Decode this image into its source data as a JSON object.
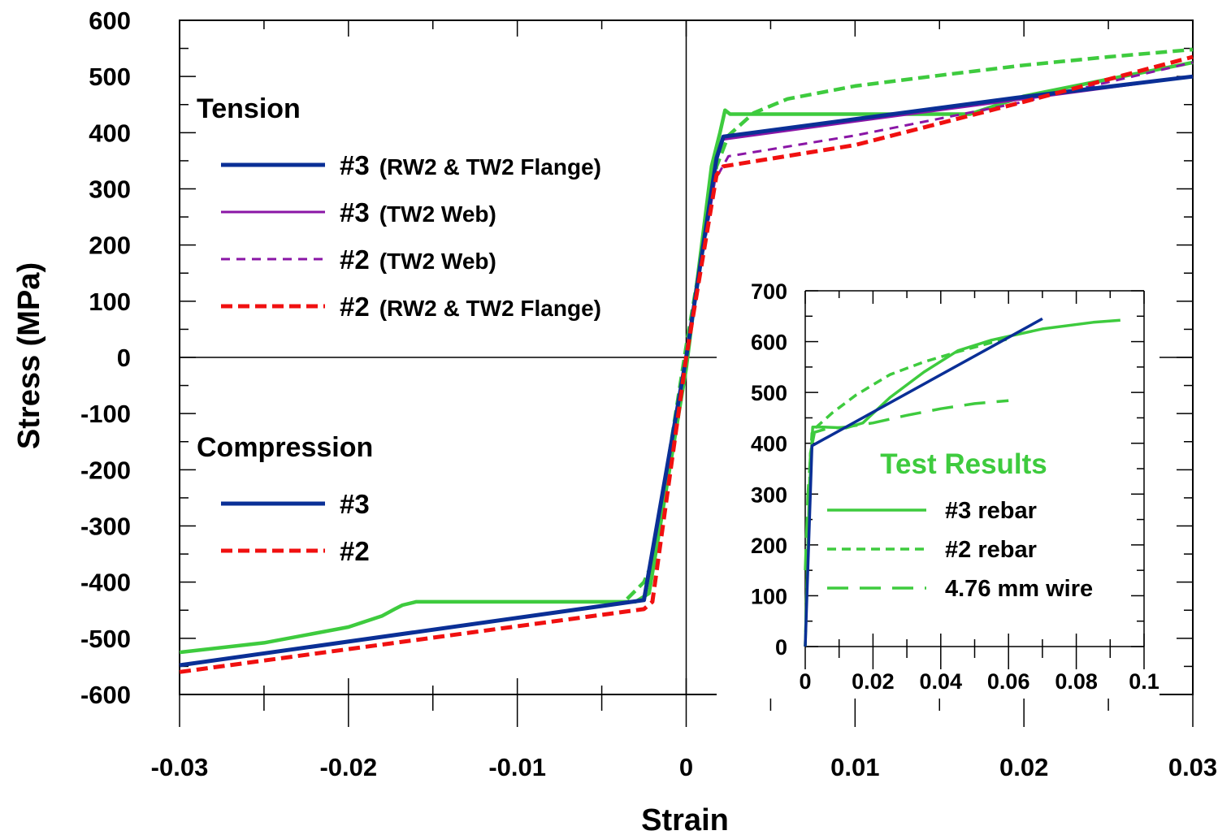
{
  "colors": {
    "blue": "#0a2f96",
    "purple": "#8a16a6",
    "red": "#f01010",
    "green": "#3ecb3e"
  },
  "chart_data": [
    {
      "type": "line",
      "xlabel": "Strain",
      "ylabel": "Stress (MPa)",
      "xlim": [
        -0.03,
        0.03
      ],
      "ylim": [
        -600,
        600
      ],
      "x_ticks": [
        "-0.03",
        "-0.02",
        "-0.01",
        "0",
        "0.01",
        "0.02",
        "0.03"
      ],
      "y_ticks": [
        "600",
        "500",
        "400",
        "300",
        "200",
        "100",
        "0",
        "-100",
        "-200",
        "-300",
        "-400",
        "-500",
        "-600"
      ],
      "legend_groups": [
        {
          "heading": "Tension",
          "entries": [
            {
              "main": "#3",
              "sub": "(RW2 & TW2 Flange)",
              "color": "#0a2f96",
              "style": "solid-thick"
            },
            {
              "main": "#3",
              "sub": "(TW2 Web)",
              "color": "#8a16a6",
              "style": "solid-thin"
            },
            {
              "main": "#2",
              "sub": "(TW2 Web)",
              "color": "#8a16a6",
              "style": "dash-thin"
            },
            {
              "main": "#2",
              "sub": "(RW2 & TW2 Flange)",
              "color": "#f01010",
              "style": "dash-thick"
            }
          ]
        },
        {
          "heading": "Compression",
          "entries": [
            {
              "main": "#3",
              "sub": "",
              "color": "#0a2f96",
              "style": "solid-thick"
            },
            {
              "main": "#2",
              "sub": "",
              "color": "#f01010",
              "style": "dash-thick"
            }
          ]
        }
      ],
      "series": [
        {
          "color": "#3ecb3e",
          "style": "solid",
          "points": [
            [
              -0.03,
              -525
            ],
            [
              -0.025,
              -508
            ],
            [
              -0.02,
              -480
            ],
            [
              -0.018,
              -460
            ],
            [
              -0.0172,
              -447
            ],
            [
              -0.0168,
              -441
            ],
            [
              -0.016,
              -435
            ],
            [
              -0.01,
              -435
            ],
            [
              -0.003,
              -435
            ],
            [
              -0.0022,
              -420
            ],
            [
              0,
              -20
            ],
            [
              0.0015,
              340
            ],
            [
              0.002,
              400
            ],
            [
              0.0023,
              440
            ],
            [
              0.0026,
              433
            ],
            [
              0.005,
              433
            ],
            [
              0.01,
              433
            ],
            [
              0.0168,
              433
            ],
            [
              0.02,
              465
            ],
            [
              0.025,
              495
            ],
            [
              0.03,
              525
            ]
          ]
        },
        {
          "color": "#3ecb3e",
          "style": "dash",
          "points": [
            [
              -0.0035,
              -430
            ],
            [
              -0.0025,
              -400
            ],
            [
              -0.002,
              -365
            ],
            [
              0,
              20
            ],
            [
              0.0018,
              340
            ],
            [
              0.0025,
              395
            ],
            [
              0.004,
              435
            ],
            [
              0.006,
              460
            ],
            [
              0.01,
              483
            ],
            [
              0.015,
              502
            ],
            [
              0.02,
              520
            ],
            [
              0.025,
              535
            ],
            [
              0.03,
              548
            ]
          ]
        },
        {
          "color": "#8a16a6",
          "style": "solid-thin",
          "points": [
            [
              0,
              0
            ],
            [
              0.0017,
              340
            ],
            [
              0.0022,
              388
            ],
            [
              0.01,
              420
            ],
            [
              0.02,
              460
            ],
            [
              0.03,
              500
            ]
          ]
        },
        {
          "color": "#8a16a6",
          "style": "dash-thin",
          "points": [
            [
              0,
              0
            ],
            [
              0.0017,
              315
            ],
            [
              0.0025,
              358
            ],
            [
              0.01,
              395
            ],
            [
              0.02,
              455
            ],
            [
              0.03,
              525
            ]
          ]
        },
        {
          "color": "#0a2f96",
          "style": "solid-thick",
          "points": [
            [
              -0.03,
              -548
            ],
            [
              -0.0025,
              -432
            ],
            [
              0,
              0
            ],
            [
              0.0018,
              355
            ],
            [
              0.0022,
              393
            ],
            [
              0.01,
              424
            ],
            [
              0.0195,
              462
            ],
            [
              0.03,
              500
            ]
          ]
        },
        {
          "color": "#f01010",
          "style": "dash-thick",
          "points": [
            [
              -0.03,
              -560
            ],
            [
              -0.0025,
              -448
            ],
            [
              -0.002,
              -435
            ],
            [
              0,
              0
            ],
            [
              0.0018,
              325
            ],
            [
              0.0022,
              340
            ],
            [
              0.01,
              378
            ],
            [
              0.02,
              455
            ],
            [
              0.03,
              535
            ]
          ]
        }
      ]
    },
    {
      "type": "line",
      "title": "Test Results",
      "xlim": [
        0,
        0.1
      ],
      "ylim": [
        0,
        700
      ],
      "x_ticks": [
        "0",
        "0.02",
        "0.04",
        "0.06",
        "0.08",
        "0.1"
      ],
      "y_ticks": [
        "700",
        "600",
        "500",
        "400",
        "300",
        "200",
        "100",
        "0"
      ],
      "legend": [
        {
          "label": "#3 rebar",
          "color": "#3ecb3e",
          "style": "solid"
        },
        {
          "label": "#2 rebar",
          "color": "#3ecb3e",
          "style": "dash-short"
        },
        {
          "label": "4.76 mm wire",
          "color": "#3ecb3e",
          "style": "dash-long"
        }
      ],
      "series": [
        {
          "color": "#3ecb3e",
          "style": "solid",
          "points": [
            [
              0,
              0
            ],
            [
              0.0012,
              300
            ],
            [
              0.0022,
              432
            ],
            [
              0.005,
              432
            ],
            [
              0.012,
              430
            ],
            [
              0.017,
              440
            ],
            [
              0.025,
              490
            ],
            [
              0.035,
              540
            ],
            [
              0.045,
              582
            ],
            [
              0.055,
              603
            ],
            [
              0.07,
              625
            ],
            [
              0.085,
              638
            ],
            [
              0.093,
              642
            ]
          ]
        },
        {
          "color": "#3ecb3e",
          "style": "dash-short",
          "points": [
            [
              0,
              0
            ],
            [
              0.0015,
              380
            ],
            [
              0.003,
              430
            ],
            [
              0.008,
              460
            ],
            [
              0.015,
              495
            ],
            [
              0.025,
              535
            ],
            [
              0.035,
              560
            ],
            [
              0.045,
              580
            ],
            [
              0.055,
              598
            ],
            [
              0.06,
              605
            ]
          ]
        },
        {
          "color": "#3ecb3e",
          "style": "dash-long",
          "points": [
            [
              0,
              150
            ],
            [
              0.0008,
              300
            ],
            [
              0.002,
              420
            ],
            [
              0.006,
              428
            ],
            [
              0.012,
              432
            ],
            [
              0.02,
              440
            ],
            [
              0.03,
              455
            ],
            [
              0.04,
              468
            ],
            [
              0.05,
              478
            ],
            [
              0.06,
              484
            ]
          ]
        },
        {
          "color": "#0a2f96",
          "style": "solid",
          "points": [
            [
              0,
              0
            ],
            [
              0.002,
              395
            ],
            [
              0.07,
              645
            ]
          ]
        }
      ]
    }
  ]
}
